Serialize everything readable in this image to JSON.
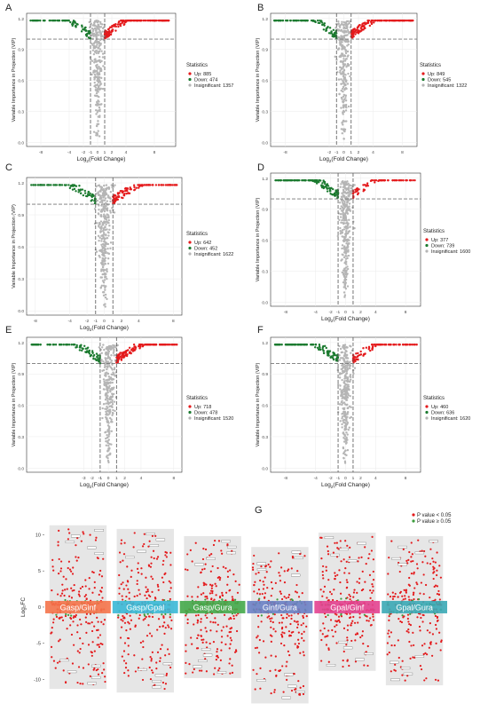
{
  "panels": [
    {
      "letter": "A",
      "legend_title": "Statistics",
      "legend": [
        "Up: 885",
        "Down: 474",
        "Insignificant: 1357"
      ],
      "xticks": [
        "-8",
        "-4",
        "-2",
        "-1",
        "0",
        "1",
        "2",
        "4",
        "8"
      ],
      "xrange": [
        -10,
        11
      ],
      "counts": {
        "up": 885,
        "down": 474,
        "ins": 1357
      }
    },
    {
      "letter": "B",
      "legend_title": "Statistics",
      "legend": [
        "Up: 849",
        "Down: 545",
        "Insignificant: 1322"
      ],
      "xticks": [
        "-8",
        "-2",
        "-1",
        "0",
        "1",
        "2",
        "4",
        "8"
      ],
      "xrange": [
        -10,
        10
      ],
      "counts": {
        "up": 849,
        "down": 545,
        "ins": 1322
      }
    },
    {
      "letter": "C",
      "legend_title": "Statistics",
      "legend": [
        "Up: 642",
        "Down: 452",
        "Insignificant: 1622"
      ],
      "xticks": [
        "-8",
        "-4",
        "-2",
        "-1",
        "0",
        "1",
        "2",
        "4",
        "8"
      ],
      "xrange": [
        -9,
        9
      ],
      "counts": {
        "up": 642,
        "down": 452,
        "ins": 1622
      }
    },
    {
      "letter": "D",
      "legend_title": "Statistics",
      "legend": [
        "Up: 377",
        "Down: 739",
        "Insignificant: 1600"
      ],
      "xticks": [
        "-8",
        "-4",
        "-2",
        "-1",
        "0",
        "1",
        "2",
        "4",
        "8"
      ],
      "xrange": [
        -10,
        10
      ],
      "counts": {
        "up": 377,
        "down": 739,
        "ins": 1600
      }
    },
    {
      "letter": "E",
      "legend_title": "Statistics",
      "legend": [
        "Up: 718",
        "Down: 478",
        "Insignificant: 1520"
      ],
      "xticks": [
        "-3",
        "-1",
        "-2",
        "-1",
        "0",
        "1",
        "2",
        "4",
        "8"
      ],
      "xrange": [
        -10,
        9
      ],
      "counts": {
        "up": 718,
        "down": 478,
        "ins": 1520
      }
    },
    {
      "letter": "F",
      "legend_title": "Statistics",
      "legend": [
        "Up: 460",
        "Down: 636",
        "Insignificant: 1620"
      ],
      "xticks": [
        "-8",
        "-4",
        "-2",
        "-1",
        "0",
        "1",
        "2",
        "4",
        "8"
      ],
      "xrange": [
        -10,
        10
      ],
      "counts": {
        "up": 460,
        "down": 636,
        "ins": 1620
      }
    }
  ],
  "shared_axes": {
    "ylabel": "Variable Importance in Projection (VIP)",
    "xlabel_prefix": "Log",
    "xlabel_sub": "2",
    "xlabel_suffix": "(Fold Change)",
    "yticks": [
      "0.0",
      "0.3",
      "0.6",
      "0.9",
      "1.2"
    ]
  },
  "panel_g": {
    "letter": "G",
    "ylabel": "Log₂FC",
    "yticks": [
      "10",
      "5",
      "0",
      "-5",
      "-10"
    ],
    "legend": [
      "P value < 0.05",
      "P value ≥ 0.05"
    ],
    "groups": [
      "Gasp/Ginf",
      "Gasp/Gpal",
      "Gasp/Gura",
      "Ginf/Gura",
      "Gpal/Ginf",
      "Gpal/Gura"
    ]
  },
  "colors": {
    "up": "#e41a1c",
    "down": "#1b7a2f",
    "insignificant": "#b5b5b5",
    "group_bands": [
      "#f4734a",
      "#3ab8d6",
      "#44a84a",
      "#6a7fc4",
      "#e3418f",
      "#3aa8b5"
    ],
    "point_sig": "#e41a1c",
    "point_ns": "#3c9c3c"
  },
  "chart_data": [
    {
      "type": "scatter",
      "panel": "A",
      "xlabel": "Log2(Fold Change)",
      "ylabel": "Variable Importance in Projection (VIP)",
      "ylim": [
        0,
        1.2
      ],
      "xlim": [
        -10,
        11
      ],
      "thresholds": {
        "vip": 1.0,
        "log2fc": [
          -1,
          1
        ]
      },
      "series": [
        {
          "name": "Up",
          "count": 885
        },
        {
          "name": "Down",
          "count": 474
        },
        {
          "name": "Insignificant",
          "count": 1357
        }
      ]
    },
    {
      "type": "scatter",
      "panel": "B",
      "xlabel": "Log2(Fold Change)",
      "ylabel": "Variable Importance in Projection (VIP)",
      "ylim": [
        0,
        1.2
      ],
      "xlim": [
        -10,
        10
      ],
      "thresholds": {
        "vip": 1.0,
        "log2fc": [
          -1,
          1
        ]
      },
      "series": [
        {
          "name": "Up",
          "count": 849
        },
        {
          "name": "Down",
          "count": 545
        },
        {
          "name": "Insignificant",
          "count": 1322
        }
      ]
    },
    {
      "type": "scatter",
      "panel": "C",
      "xlabel": "Log2(Fold Change)",
      "ylabel": "Variable Importance in Projection (VIP)",
      "ylim": [
        0,
        1.2
      ],
      "xlim": [
        -9,
        9
      ],
      "thresholds": {
        "vip": 1.0,
        "log2fc": [
          -1,
          1
        ]
      },
      "series": [
        {
          "name": "Up",
          "count": 642
        },
        {
          "name": "Down",
          "count": 452
        },
        {
          "name": "Insignificant",
          "count": 1622
        }
      ]
    },
    {
      "type": "scatter",
      "panel": "D",
      "xlabel": "Log2(Fold Change)",
      "ylabel": "Variable Importance in Projection (VIP)",
      "ylim": [
        0,
        1.2
      ],
      "xlim": [
        -10,
        10
      ],
      "thresholds": {
        "vip": 1.0,
        "log2fc": [
          -1,
          1
        ]
      },
      "series": [
        {
          "name": "Up",
          "count": 377
        },
        {
          "name": "Down",
          "count": 739
        },
        {
          "name": "Insignificant",
          "count": 1600
        }
      ]
    },
    {
      "type": "scatter",
      "panel": "E",
      "xlabel": "Log2(Fold Change)",
      "ylabel": "Variable Importance in Projection (VIP)",
      "ylim": [
        0,
        1.2
      ],
      "xlim": [
        -10,
        9
      ],
      "thresholds": {
        "vip": 1.0,
        "log2fc": [
          -1,
          1
        ]
      },
      "series": [
        {
          "name": "Up",
          "count": 718
        },
        {
          "name": "Down",
          "count": 478
        },
        {
          "name": "Insignificant",
          "count": 1520
        }
      ]
    },
    {
      "type": "scatter",
      "panel": "F",
      "xlabel": "Log2(Fold Change)",
      "ylabel": "Variable Importance in Projection (VIP)",
      "ylim": [
        0,
        1.2
      ],
      "xlim": [
        -10,
        10
      ],
      "thresholds": {
        "vip": 1.0,
        "log2fc": [
          -1,
          1
        ]
      },
      "series": [
        {
          "name": "Up",
          "count": 460
        },
        {
          "name": "Down",
          "count": 636
        },
        {
          "name": "Insignificant",
          "count": 1620
        }
      ]
    },
    {
      "type": "scatter",
      "panel": "G",
      "ylabel": "Log2FC",
      "ylim": [
        -12,
        12
      ],
      "categories": [
        "Gasp/Ginf",
        "Gasp/Gpal",
        "Gasp/Gura",
        "Ginf/Gura",
        "Gpal/Ginf",
        "Gpal/Gura"
      ],
      "series": [
        {
          "name": "P value < 0.05"
        },
        {
          "name": "P value ≥ 0.05"
        }
      ]
    }
  ]
}
